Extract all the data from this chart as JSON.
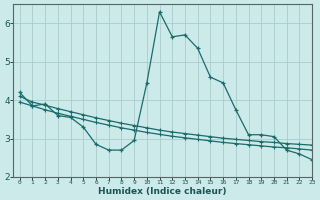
{
  "title": "",
  "xlabel": "Humidex (Indice chaleur)",
  "ylabel": "",
  "xlim": [
    -0.5,
    23
  ],
  "ylim": [
    2,
    6.5
  ],
  "yticks": [
    2,
    3,
    4,
    5,
    6
  ],
  "xticks": [
    0,
    1,
    2,
    3,
    4,
    5,
    6,
    7,
    8,
    9,
    10,
    11,
    12,
    13,
    14,
    15,
    16,
    17,
    18,
    19,
    20,
    21,
    22,
    23
  ],
  "bg_color": "#cceaea",
  "grid_color": "#aacccc",
  "line_color": "#1a6b6b",
  "line1_x": [
    0,
    1,
    2,
    3,
    4,
    5,
    6,
    7,
    8,
    9,
    10,
    11,
    12,
    13,
    14,
    15,
    16,
    17,
    18,
    19,
    20,
    21,
    22,
    23
  ],
  "line1_y": [
    4.2,
    3.85,
    3.9,
    3.6,
    3.55,
    3.3,
    2.85,
    2.7,
    2.7,
    2.95,
    4.45,
    6.3,
    5.65,
    5.7,
    5.35,
    4.6,
    4.45,
    3.75,
    3.1,
    3.1,
    3.05,
    2.7,
    2.6,
    2.45
  ],
  "line2_x": [
    0,
    1,
    2,
    3,
    4,
    5,
    6,
    7,
    8,
    9,
    10,
    11,
    12,
    13,
    14,
    15,
    16,
    17,
    18,
    19,
    20,
    21,
    22,
    23
  ],
  "line2_y": [
    4.1,
    3.95,
    3.87,
    3.78,
    3.7,
    3.62,
    3.54,
    3.47,
    3.4,
    3.34,
    3.28,
    3.22,
    3.17,
    3.13,
    3.09,
    3.05,
    3.01,
    2.98,
    2.95,
    2.92,
    2.9,
    2.87,
    2.85,
    2.83
  ],
  "line3_x": [
    0,
    1,
    2,
    3,
    4,
    5,
    6,
    7,
    8,
    9,
    10,
    11,
    12,
    13,
    14,
    15,
    16,
    17,
    18,
    19,
    20,
    21,
    22,
    23
  ],
  "line3_y": [
    3.95,
    3.85,
    3.75,
    3.66,
    3.58,
    3.5,
    3.42,
    3.35,
    3.28,
    3.22,
    3.16,
    3.11,
    3.06,
    3.02,
    2.98,
    2.94,
    2.9,
    2.87,
    2.84,
    2.81,
    2.78,
    2.76,
    2.73,
    2.7
  ]
}
